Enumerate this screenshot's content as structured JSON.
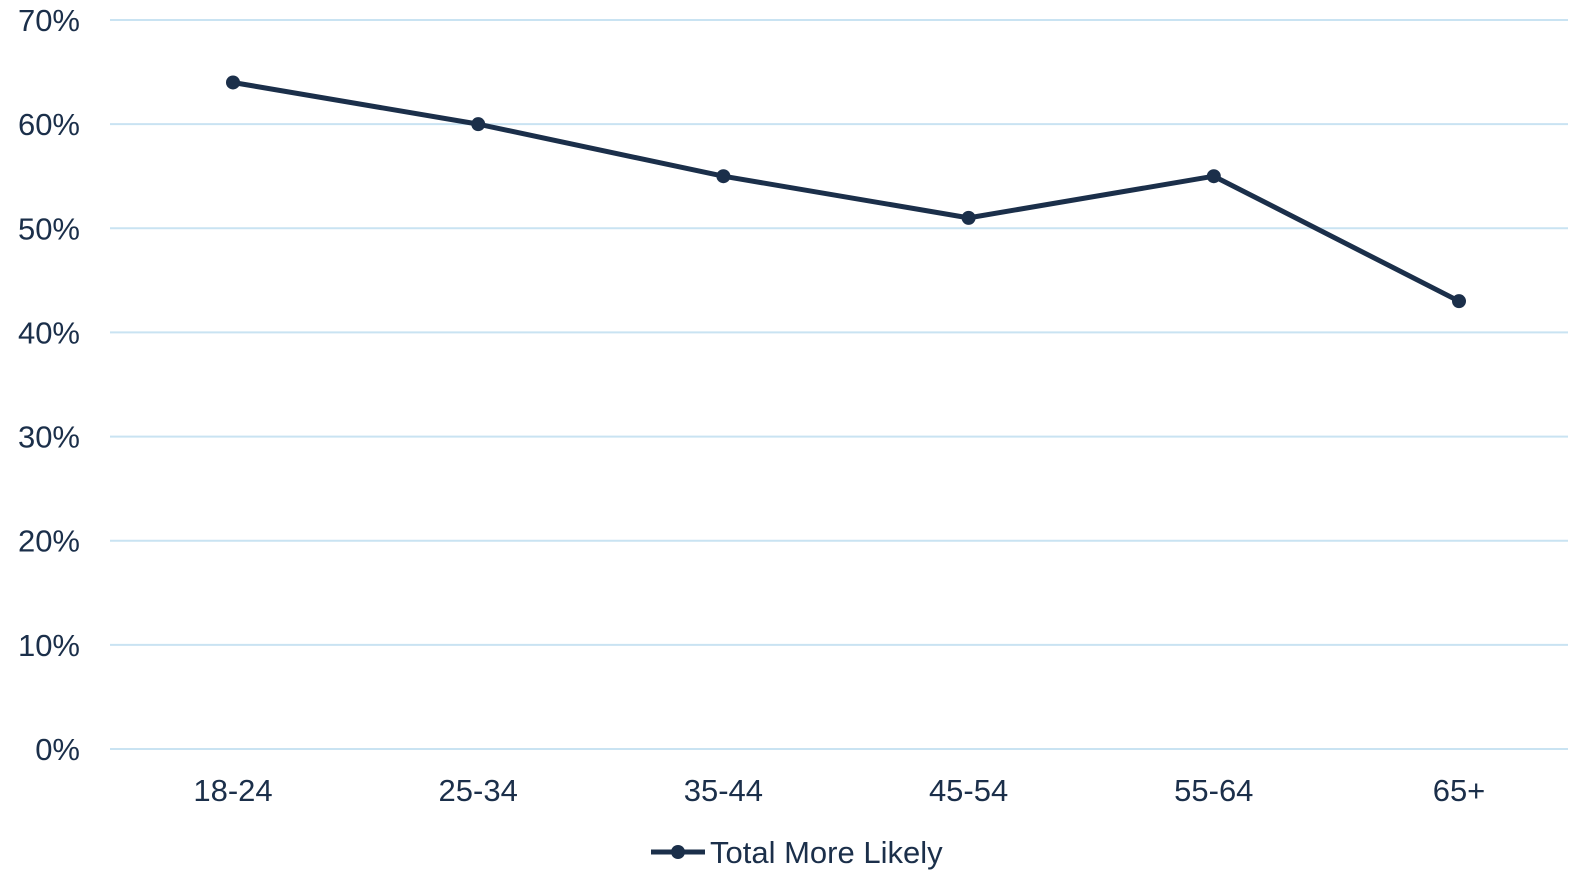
{
  "chart_data": {
    "type": "line",
    "title": "",
    "xlabel": "",
    "ylabel": "",
    "categories": [
      "18-24",
      "25-34",
      "35-44",
      "45-54",
      "55-64",
      "65+"
    ],
    "series": [
      {
        "name": "Total More Likely",
        "values": [
          0.64,
          0.6,
          0.55,
          0.51,
          0.55,
          0.43
        ],
        "color": "#1b2f4a"
      }
    ],
    "ylim": [
      0,
      0.7
    ],
    "yticks": [
      0,
      0.1,
      0.2,
      0.3,
      0.4,
      0.5,
      0.6,
      0.7
    ],
    "ytick_labels": [
      "0%",
      "10%",
      "20%",
      "30%",
      "40%",
      "50%",
      "60%",
      "70%"
    ],
    "grid": true,
    "grid_color": "#c9e3f2",
    "legend_position": "bottom-center"
  }
}
